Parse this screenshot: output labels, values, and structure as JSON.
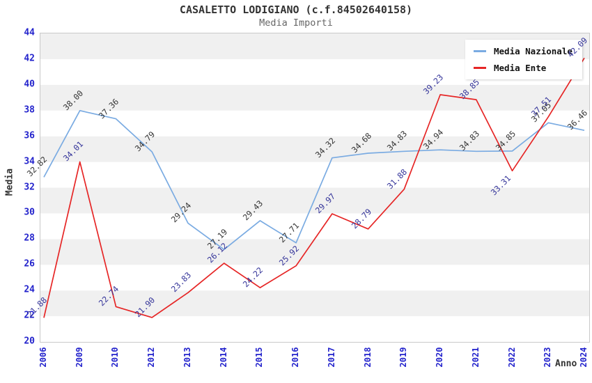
{
  "header": {
    "title": "CASALETTO LODIGIANO (c.f.84502640158)",
    "subtitle": "Media Importi"
  },
  "chart_data": {
    "type": "line",
    "title": "CASALETTO LODIGIANO (c.f.84502640158)",
    "subtitle": "Media Importi",
    "xlabel": "Anno",
    "ylabel": "Media",
    "ylim": [
      20,
      44
    ],
    "yticks": [
      20,
      22,
      24,
      26,
      28,
      30,
      32,
      34,
      36,
      38,
      40,
      42,
      44
    ],
    "grid": "horizontal-bands",
    "legend_position": "top-right",
    "categories": [
      "2006",
      "2009",
      "2010",
      "2012",
      "2013",
      "2014",
      "2015",
      "2016",
      "2017",
      "2018",
      "2019",
      "2020",
      "2021",
      "2022",
      "2023",
      "2024"
    ],
    "series": [
      {
        "name": "Media Nazionale",
        "color": "#7aabe2",
        "label_color": "#333333",
        "values": [
          32.82,
          38.0,
          37.36,
          34.79,
          29.24,
          27.19,
          29.43,
          27.71,
          34.32,
          34.68,
          34.83,
          34.94,
          34.83,
          34.85,
          37.05,
          36.46
        ],
        "label_below_indices": []
      },
      {
        "name": "Media Ente",
        "color": "#e62525",
        "label_color": "#333399",
        "values": [
          21.88,
          34.01,
          22.74,
          21.9,
          23.83,
          26.12,
          24.22,
          25.92,
          29.97,
          28.79,
          31.88,
          39.23,
          38.85,
          33.31,
          37.51,
          42.09
        ],
        "label_below_indices": [
          13
        ]
      }
    ],
    "colors": {
      "band_gray": "#f0f0f0",
      "band_white": "#ffffff",
      "plot_border": "#c9c9c9",
      "tick_label": "#2323cc",
      "title": "#333333",
      "subtitle": "#666666",
      "axis_title": "#333333"
    }
  }
}
